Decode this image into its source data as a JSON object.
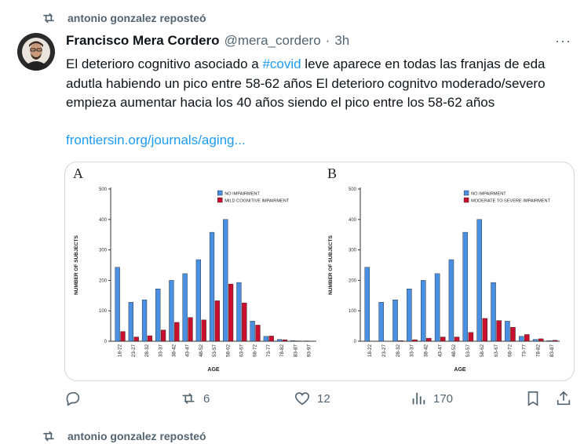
{
  "retweet_header": {
    "text": "antonio gonzalez reposteó"
  },
  "author": {
    "name": "Francisco Mera Cordero",
    "handle": "@mera_cordero",
    "separator": "·",
    "time": "3h"
  },
  "more_label": "···",
  "tweet": {
    "text_before": "El deterioro cognitivo asociado a ",
    "hashtag": "#covid",
    "text_after": "  leve aparece en todas las franjas de eda adutla  habiendo un pico entre 58-62 años  El deterioro cognitvo moderado/severo empieza aumentar hacia los 40 años siendo el pico entre los 58-62 años",
    "link": "frontiersin.org/journals/aging..."
  },
  "actions": {
    "reply_count": "",
    "retweet_count": "6",
    "like_count": "12",
    "views_count": "170"
  },
  "next_retweet_header": {
    "text": "antonio gonzalez reposteó"
  },
  "colors": {
    "blue_bar": "#4a90e2",
    "red_bar": "#c8102e",
    "link": "#1d9bf0",
    "muted": "#536471"
  },
  "chart_data": [
    {
      "type": "bar",
      "panel_label": "A",
      "ylabel": "NUMBER OF SUBJECTS",
      "xlabel": "AGE",
      "ylim": [
        0,
        500
      ],
      "yticks": [
        "0",
        "100",
        "200",
        "300",
        "400",
        "500"
      ],
      "categories": [
        "18-22",
        "23-27",
        "28-32",
        "33-37",
        "38-42",
        "43-47",
        "48-52",
        "53-57",
        "58-62",
        "63-67",
        "68-72",
        "73-77",
        "78-82",
        "83-87",
        "93-97"
      ],
      "series": [
        {
          "name": "NO IMPAIRMENT",
          "values": [
            243,
            128,
            136,
            172,
            200,
            222,
            268,
            358,
            400,
            193,
            66,
            16,
            6,
            2,
            1
          ]
        },
        {
          "name": "MILD COGNITIVE IMPAIRMENT",
          "values": [
            32,
            14,
            18,
            37,
            62,
            78,
            70,
            133,
            188,
            126,
            53,
            17,
            5,
            1,
            0
          ]
        }
      ]
    },
    {
      "type": "bar",
      "panel_label": "B",
      "ylabel": "NUMBER OF SUBJECTS",
      "xlabel": "AGE",
      "ylim": [
        0,
        500
      ],
      "yticks": [
        "0",
        "100",
        "200",
        "300",
        "400",
        "500"
      ],
      "categories": [
        "18-22",
        "23-27",
        "28-32",
        "33-37",
        "38-42",
        "43-47",
        "48-52",
        "53-57",
        "58-62",
        "63-67",
        "68-72",
        "73-77",
        "78-82",
        "83-87"
      ],
      "series": [
        {
          "name": "NO IMPAIRMENT",
          "values": [
            243,
            128,
            136,
            172,
            200,
            222,
            268,
            358,
            400,
            193,
            66,
            16,
            6,
            2
          ]
        },
        {
          "name": "MODERATE TO SEVERE IMPAIRMENT",
          "values": [
            0,
            0,
            2,
            5,
            10,
            14,
            14,
            29,
            75,
            68,
            46,
            22,
            8,
            3
          ]
        }
      ]
    }
  ]
}
